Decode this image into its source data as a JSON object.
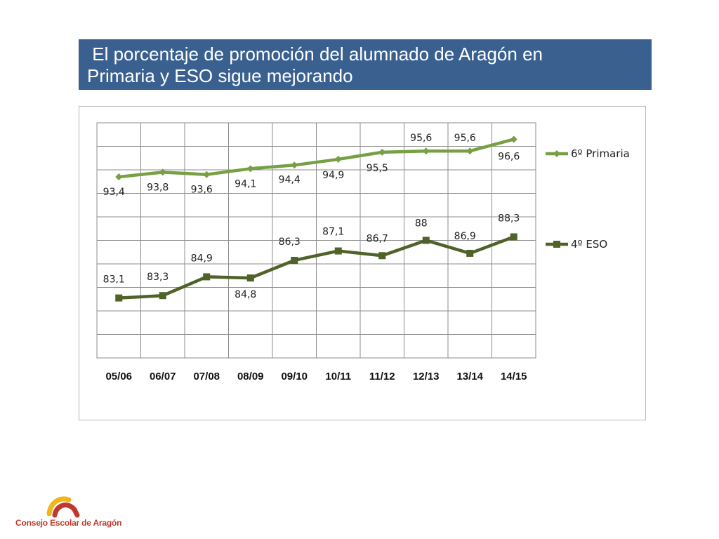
{
  "slide": {
    "title_line1": " El porcentaje de promoción del alumnado de Aragón en",
    "title_line2": "Primaria y ESO sigue mejorando",
    "banner_color": "#3a6090"
  },
  "footer": {
    "organization": "Consejo Escolar de Aragón",
    "logo_icon": "arc-logo-icon",
    "logo_colors": [
      "#f2b51c",
      "#c0392b"
    ]
  },
  "chart_data": {
    "type": "line",
    "categories": [
      "05/06",
      "06/07",
      "07/08",
      "08/09",
      "09/10",
      "10/11",
      "11/12",
      "12/13",
      "13/14",
      "14/15"
    ],
    "ylim": [
      78,
      98
    ],
    "grid": true,
    "legend_position": "right",
    "series": [
      {
        "name": "6º Primaria",
        "values": [
          93.4,
          93.8,
          93.6,
          94.1,
          94.4,
          94.9,
          95.5,
          95.6,
          95.6,
          96.6
        ],
        "labels": [
          "93,4",
          "93,8",
          "93,6",
          "94,1",
          "94,4",
          "94,9",
          "95,5",
          "95,6",
          "95,6",
          "96,6"
        ],
        "color": "#77a044",
        "marker": "diamond"
      },
      {
        "name": "4º ESO",
        "values": [
          83.1,
          83.3,
          84.9,
          84.8,
          86.3,
          87.1,
          86.7,
          88,
          86.9,
          88.3
        ],
        "labels": [
          "83,1",
          "83,3",
          "84,9",
          "84,8",
          "86,3",
          "87,1",
          "86,7",
          "88",
          "86,9",
          "88,3"
        ],
        "color": "#4f6228",
        "marker": "square"
      }
    ]
  }
}
